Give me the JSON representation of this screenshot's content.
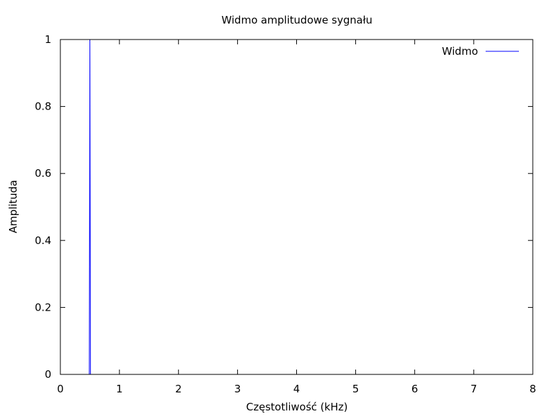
{
  "chart_data": {
    "type": "line",
    "title": "Widmo amplitudowe sygnału",
    "xlabel": "Częstotliwość (kHz)",
    "ylabel": "Amplituda",
    "xlim": [
      0,
      8
    ],
    "ylim": [
      0,
      1
    ],
    "x_ticks": [
      "0",
      "1",
      "2",
      "3",
      "4",
      "5",
      "6",
      "7",
      "8"
    ],
    "y_ticks": [
      "0",
      "0.2",
      "0.4",
      "0.6",
      "0.8",
      "1"
    ],
    "grid": false,
    "legend_position": "top-right",
    "series": [
      {
        "name": "Widmo",
        "color": "#0000ff",
        "x": [
          0,
          0.49,
          0.5,
          0.51,
          8
        ],
        "y": [
          0,
          0,
          1,
          0,
          0
        ]
      }
    ]
  }
}
